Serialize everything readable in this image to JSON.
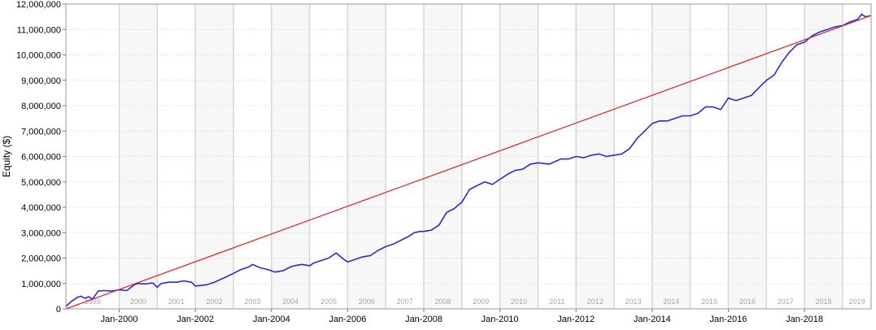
{
  "chart_data": {
    "type": "line",
    "title": "",
    "xlabel": "",
    "ylabel": "Equity ($)",
    "ylim": [
      0,
      12000000
    ],
    "xlim": [
      1998.6,
      2019.75
    ],
    "y_ticks": [
      {
        "value": 0,
        "label": "0"
      },
      {
        "value": 1000000,
        "label": "1,000,000"
      },
      {
        "value": 2000000,
        "label": "2,000,000"
      },
      {
        "value": 3000000,
        "label": "3,000,000"
      },
      {
        "value": 4000000,
        "label": "4,000,000"
      },
      {
        "value": 5000000,
        "label": "5,000,000"
      },
      {
        "value": 6000000,
        "label": "6,000,000"
      },
      {
        "value": 7000000,
        "label": "7,000,000"
      },
      {
        "value": 8000000,
        "label": "8,000,000"
      },
      {
        "value": 9000000,
        "label": "9,000,000"
      },
      {
        "value": 10000000,
        "label": "10,000,000"
      },
      {
        "value": 11000000,
        "label": "11,000,000"
      },
      {
        "value": 12000000,
        "label": "12,000,000"
      }
    ],
    "x_ticks": [
      {
        "value": 2000,
        "label": "Jan-2000"
      },
      {
        "value": 2002,
        "label": "Jan-2002"
      },
      {
        "value": 2004,
        "label": "Jan-2004"
      },
      {
        "value": 2006,
        "label": "Jan-2006"
      },
      {
        "value": 2008,
        "label": "Jan-2008"
      },
      {
        "value": 2010,
        "label": "Jan-2010"
      },
      {
        "value": 2012,
        "label": "Jan-2012"
      },
      {
        "value": 2014,
        "label": "Jan-2014"
      },
      {
        "value": 2016,
        "label": "Jan-2016"
      },
      {
        "value": 2018,
        "label": "Jan-2018"
      }
    ],
    "year_bands": [
      {
        "label": "1999",
        "start": 1998.6,
        "end": 2000.0
      },
      {
        "label": "2000",
        "start": 2000.0,
        "end": 2001.0
      },
      {
        "label": "2001",
        "start": 2001.0,
        "end": 2002.0
      },
      {
        "label": "2002",
        "start": 2002.0,
        "end": 2003.0
      },
      {
        "label": "2003",
        "start": 2003.0,
        "end": 2004.0
      },
      {
        "label": "2004",
        "start": 2004.0,
        "end": 2005.0
      },
      {
        "label": "2005",
        "start": 2005.0,
        "end": 2006.0
      },
      {
        "label": "2006",
        "start": 2006.0,
        "end": 2007.0
      },
      {
        "label": "2007",
        "start": 2007.0,
        "end": 2008.0
      },
      {
        "label": "2008",
        "start": 2008.0,
        "end": 2009.0
      },
      {
        "label": "2009",
        "start": 2009.0,
        "end": 2010.0
      },
      {
        "label": "2010",
        "start": 2010.0,
        "end": 2011.0
      },
      {
        "label": "2011",
        "start": 2011.0,
        "end": 2012.0
      },
      {
        "label": "2012",
        "start": 2012.0,
        "end": 2013.0
      },
      {
        "label": "2013",
        "start": 2013.0,
        "end": 2014.0
      },
      {
        "label": "2014",
        "start": 2014.0,
        "end": 2015.0
      },
      {
        "label": "2015",
        "start": 2015.0,
        "end": 2016.0
      },
      {
        "label": "2016",
        "start": 2016.0,
        "end": 2017.0
      },
      {
        "label": "2017",
        "start": 2017.0,
        "end": 2018.0
      },
      {
        "label": "2018",
        "start": 2018.0,
        "end": 2019.0
      },
      {
        "label": "2019",
        "start": 2019.0,
        "end": 2019.75
      }
    ],
    "grid": true,
    "legend": "none",
    "series": [
      {
        "kind": "equity",
        "color": "#2b2bd6",
        "x": [
          1998.6,
          1998.75,
          1998.9,
          1999.0,
          1999.1,
          1999.2,
          1999.3,
          1999.45,
          1999.6,
          1999.8,
          2000.0,
          2000.2,
          2000.4,
          2000.5,
          2000.7,
          2000.85,
          2000.9,
          2001.0,
          2001.1,
          2001.3,
          2001.5,
          2001.7,
          2001.9,
          2002.0,
          2002.3,
          2002.5,
          2002.8,
          2003.0,
          2003.2,
          2003.4,
          2003.5,
          2003.7,
          2003.9,
          2004.1,
          2004.3,
          2004.5,
          2004.6,
          2004.8,
          2005.0,
          2005.1,
          2005.3,
          2005.5,
          2005.7,
          2005.9,
          2006.0,
          2006.2,
          2006.4,
          2006.6,
          2006.8,
          2007.0,
          2007.2,
          2007.4,
          2007.6,
          2007.75,
          2007.9,
          2008.0,
          2008.2,
          2008.4,
          2008.6,
          2008.8,
          2009.0,
          2009.2,
          2009.4,
          2009.6,
          2009.8,
          2010.0,
          2010.2,
          2010.4,
          2010.6,
          2010.8,
          2011.0,
          2011.3,
          2011.6,
          2011.8,
          2012.0,
          2012.2,
          2012.4,
          2012.6,
          2012.8,
          2013.0,
          2013.2,
          2013.4,
          2013.6,
          2013.8,
          2014.0,
          2014.2,
          2014.4,
          2014.6,
          2014.8,
          2015.0,
          2015.2,
          2015.4,
          2015.6,
          2015.8,
          2016.0,
          2016.2,
          2016.4,
          2016.6,
          2016.8,
          2017.0,
          2017.2,
          2017.4,
          2017.6,
          2017.8,
          2018.0,
          2018.2,
          2018.4,
          2018.6,
          2018.8,
          2019.0,
          2019.2,
          2019.4,
          2019.5,
          2019.6,
          2019.75
        ],
        "y": [
          100000,
          300000,
          450000,
          500000,
          420000,
          480000,
          380000,
          700000,
          720000,
          700000,
          750000,
          720000,
          950000,
          1000000,
          980000,
          1020000,
          1000000,
          850000,
          1000000,
          1050000,
          1050000,
          1100000,
          1050000,
          900000,
          950000,
          1050000,
          1250000,
          1400000,
          1550000,
          1650000,
          1750000,
          1620000,
          1550000,
          1450000,
          1500000,
          1650000,
          1700000,
          1750000,
          1700000,
          1800000,
          1900000,
          2000000,
          2200000,
          1950000,
          1850000,
          1950000,
          2050000,
          2100000,
          2300000,
          2450000,
          2550000,
          2700000,
          2850000,
          3000000,
          3050000,
          3050000,
          3100000,
          3300000,
          3800000,
          3950000,
          4200000,
          4700000,
          4850000,
          5000000,
          4900000,
          5100000,
          5300000,
          5450000,
          5500000,
          5700000,
          5750000,
          5700000,
          5900000,
          5900000,
          6000000,
          5950000,
          6050000,
          6100000,
          6000000,
          6050000,
          6100000,
          6300000,
          6700000,
          7000000,
          7300000,
          7400000,
          7400000,
          7500000,
          7600000,
          7600000,
          7700000,
          7950000,
          7950000,
          7850000,
          8300000,
          8200000,
          8300000,
          8400000,
          8700000,
          9000000,
          9200000,
          9700000,
          10100000,
          10400000,
          10500000,
          10750000,
          10900000,
          11000000,
          11100000,
          11150000,
          11300000,
          11400000,
          11600000,
          11500000,
          11550000
        ]
      },
      {
        "kind": "trend",
        "color": "#e02020",
        "x": [
          1998.6,
          2019.75
        ],
        "y": [
          0,
          11550000
        ]
      }
    ]
  }
}
